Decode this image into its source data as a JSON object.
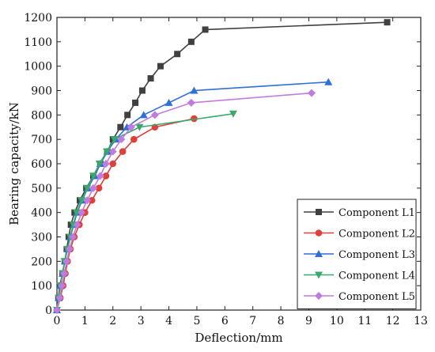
{
  "chart_data": {
    "type": "line",
    "xlabel": "Deflection/mm",
    "ylabel": "Bearing capacity/kN",
    "xlim": [
      0,
      13
    ],
    "ylim": [
      0,
      1200
    ],
    "xticks": [
      0,
      1,
      2,
      3,
      4,
      5,
      6,
      7,
      8,
      9,
      10,
      11,
      12,
      13
    ],
    "yticks": [
      0,
      100,
      200,
      300,
      400,
      500,
      600,
      700,
      800,
      900,
      1000,
      1100,
      1200
    ],
    "grid": false,
    "legend_position": "bottom-right",
    "series": [
      {
        "name": "Component L1",
        "color": "#404040",
        "marker": "square",
        "points": [
          [
            0,
            0
          ],
          [
            0.05,
            50
          ],
          [
            0.1,
            100
          ],
          [
            0.2,
            150
          ],
          [
            0.28,
            200
          ],
          [
            0.35,
            250
          ],
          [
            0.42,
            300
          ],
          [
            0.5,
            350
          ],
          [
            0.63,
            400
          ],
          [
            0.82,
            450
          ],
          [
            1.05,
            500
          ],
          [
            1.3,
            550
          ],
          [
            1.55,
            600
          ],
          [
            1.8,
            650
          ],
          [
            2.0,
            700
          ],
          [
            2.27,
            750
          ],
          [
            2.52,
            800
          ],
          [
            2.8,
            850
          ],
          [
            3.05,
            900
          ],
          [
            3.35,
            950
          ],
          [
            3.7,
            1000
          ],
          [
            4.3,
            1050
          ],
          [
            4.8,
            1100
          ],
          [
            5.3,
            1150
          ],
          [
            11.8,
            1180
          ]
        ]
      },
      {
        "name": "Component L2",
        "color": "#e0403a",
        "marker": "circle",
        "points": [
          [
            0,
            0
          ],
          [
            0.12,
            50
          ],
          [
            0.22,
            100
          ],
          [
            0.3,
            150
          ],
          [
            0.38,
            200
          ],
          [
            0.48,
            250
          ],
          [
            0.62,
            300
          ],
          [
            0.8,
            350
          ],
          [
            1.0,
            400
          ],
          [
            1.25,
            450
          ],
          [
            1.5,
            500
          ],
          [
            1.75,
            550
          ],
          [
            2.0,
            600
          ],
          [
            2.35,
            650
          ],
          [
            2.75,
            700
          ],
          [
            3.5,
            750
          ],
          [
            4.9,
            785
          ]
        ]
      },
      {
        "name": "Component L3",
        "color": "#2f6fd8",
        "marker": "triangle-up",
        "points": [
          [
            0,
            0
          ],
          [
            0.06,
            50
          ],
          [
            0.12,
            100
          ],
          [
            0.2,
            150
          ],
          [
            0.28,
            200
          ],
          [
            0.38,
            250
          ],
          [
            0.48,
            300
          ],
          [
            0.6,
            350
          ],
          [
            0.72,
            400
          ],
          [
            0.9,
            450
          ],
          [
            1.1,
            500
          ],
          [
            1.35,
            550
          ],
          [
            1.55,
            600
          ],
          [
            1.8,
            650
          ],
          [
            2.1,
            700
          ],
          [
            2.5,
            750
          ],
          [
            3.1,
            800
          ],
          [
            4.0,
            850
          ],
          [
            4.9,
            900
          ],
          [
            9.7,
            935
          ]
        ]
      },
      {
        "name": "Component L4",
        "color": "#3aa86b",
        "marker": "triangle-down",
        "points": [
          [
            0,
            0
          ],
          [
            0.06,
            50
          ],
          [
            0.12,
            100
          ],
          [
            0.2,
            150
          ],
          [
            0.27,
            200
          ],
          [
            0.37,
            250
          ],
          [
            0.47,
            300
          ],
          [
            0.58,
            350
          ],
          [
            0.7,
            400
          ],
          [
            0.88,
            450
          ],
          [
            1.08,
            500
          ],
          [
            1.3,
            550
          ],
          [
            1.52,
            600
          ],
          [
            1.78,
            650
          ],
          [
            2.05,
            700
          ],
          [
            2.95,
            750
          ],
          [
            6.3,
            805
          ]
        ]
      },
      {
        "name": "Component L5",
        "color": "#c07be0",
        "marker": "diamond",
        "points": [
          [
            0,
            0
          ],
          [
            0.1,
            50
          ],
          [
            0.18,
            100
          ],
          [
            0.26,
            150
          ],
          [
            0.35,
            200
          ],
          [
            0.45,
            250
          ],
          [
            0.57,
            300
          ],
          [
            0.72,
            350
          ],
          [
            0.88,
            400
          ],
          [
            1.08,
            450
          ],
          [
            1.3,
            500
          ],
          [
            1.55,
            550
          ],
          [
            1.75,
            600
          ],
          [
            2.0,
            650
          ],
          [
            2.3,
            700
          ],
          [
            2.65,
            750
          ],
          [
            3.5,
            800
          ],
          [
            4.8,
            850
          ],
          [
            9.1,
            890
          ]
        ]
      }
    ]
  }
}
